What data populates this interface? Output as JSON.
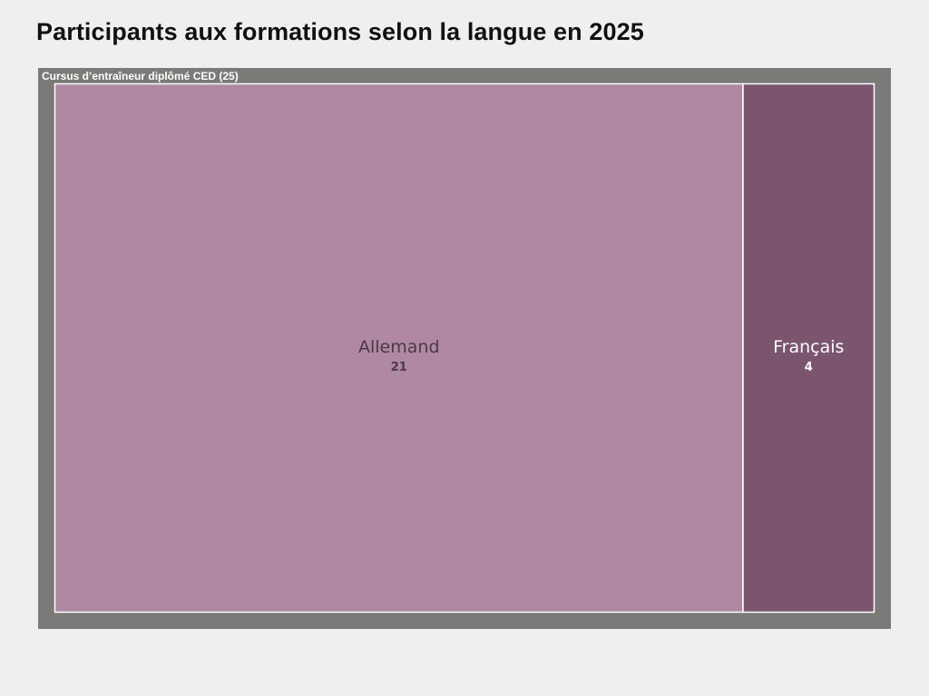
{
  "title": "Participants aux formations selon la langue en 2025",
  "chart_data": {
    "type": "treemap",
    "title": "Participants aux formations selon la langue en 2025",
    "root": {
      "label": "Cursus d’entraîneur diplômé CED (25)",
      "name": "Cursus d’entraîneur diplômé CED",
      "value": 25,
      "color": "#7a7a78",
      "children": [
        {
          "name": "Allemand",
          "value": 21,
          "color": "#b088a2",
          "text_color": "#4a3a48"
        },
        {
          "name": "Français",
          "value": 4,
          "color": "#7b546e",
          "text_color": "#ffffff"
        }
      ]
    }
  }
}
